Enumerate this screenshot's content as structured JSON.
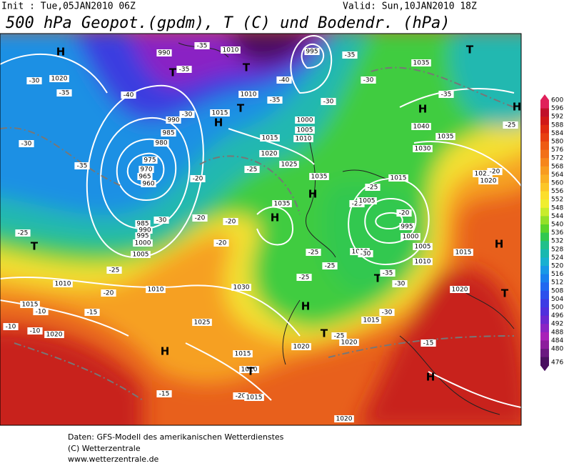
{
  "header": {
    "init": "Init : Tue,05JAN2010 06Z",
    "valid": "Valid: Sun,10JAN2010 18Z",
    "title": "500 hPa Geopot.(gpdm), T (C) und Bodendr. (hPa)"
  },
  "legend": {
    "levels": [
      600,
      596,
      592,
      588,
      584,
      580,
      576,
      572,
      568,
      564,
      560,
      556,
      552,
      548,
      544,
      540,
      536,
      532,
      528,
      524,
      520,
      516,
      512,
      508,
      504,
      500,
      496,
      492,
      488,
      484,
      480,
      476
    ],
    "colors": [
      "#e0205a",
      "#c0102a",
      "#d01818",
      "#e02a10",
      "#e84010",
      "#ee5a14",
      "#f27018",
      "#f6861c",
      "#f89c20",
      "#fab024",
      "#fcc628",
      "#fcde2c",
      "#f0ee30",
      "#c8ec2c",
      "#94e028",
      "#5cd42a",
      "#30c850",
      "#20c08a",
      "#18b8b0",
      "#18b0d0",
      "#1898e6",
      "#1880ee",
      "#2068f0",
      "#2c50ec",
      "#3c3ce4",
      "#5030dc",
      "#6c28d0",
      "#8a24c4",
      "#a820b8",
      "#8c1c9c",
      "#6a1880",
      "#4a1060"
    ]
  },
  "map": {
    "labels": [
      "H",
      "1020",
      "-30",
      "-35",
      "-40",
      "990",
      "T",
      "-35",
      "-35",
      "1010",
      "T",
      "995",
      "-40",
      "-35",
      "-30",
      "-35",
      "-30",
      "T",
      "1035",
      "-35",
      "H",
      "1040",
      "1035",
      "1030",
      "-25",
      "1025",
      "1020",
      "-20",
      "1010",
      "1015",
      "H",
      "T",
      "-30",
      "990",
      "985",
      "980",
      "975",
      "970",
      "965",
      "960",
      "-30",
      "-35",
      "-30",
      "985",
      "990",
      "995",
      "1000",
      "1005",
      "-25",
      "T",
      "1015",
      "1020",
      "1025",
      "1000",
      "1005",
      "1010",
      "-25",
      "1035",
      "H",
      "1035",
      "H",
      "-20",
      "-20",
      "-20",
      "-20",
      "-25",
      "1015",
      "-25",
      "1005",
      "-20",
      "995",
      "1000",
      "1005",
      "1010",
      "-30",
      "-25",
      "-25",
      "-25",
      "T",
      "-35",
      "1010",
      "-30",
      "1015",
      "H",
      "-30",
      "1015",
      "H",
      "T",
      "-25",
      "1020",
      "1020",
      "-15",
      "1020",
      "T",
      "H",
      "H",
      "1020",
      "-25",
      "1010",
      "-20",
      "1010",
      "1030",
      "-15",
      "1015",
      "-10",
      "-10",
      "-10",
      "1020",
      "1025",
      "H",
      "1015",
      "1010",
      "T",
      "-20",
      "1015",
      "-15"
    ]
  },
  "footer": {
    "lines": [
      "Daten: GFS-Modell des amerikanischen Wetterdienstes",
      "(C) Wetterzentrale",
      "www.wetterzentrale.de"
    ]
  }
}
